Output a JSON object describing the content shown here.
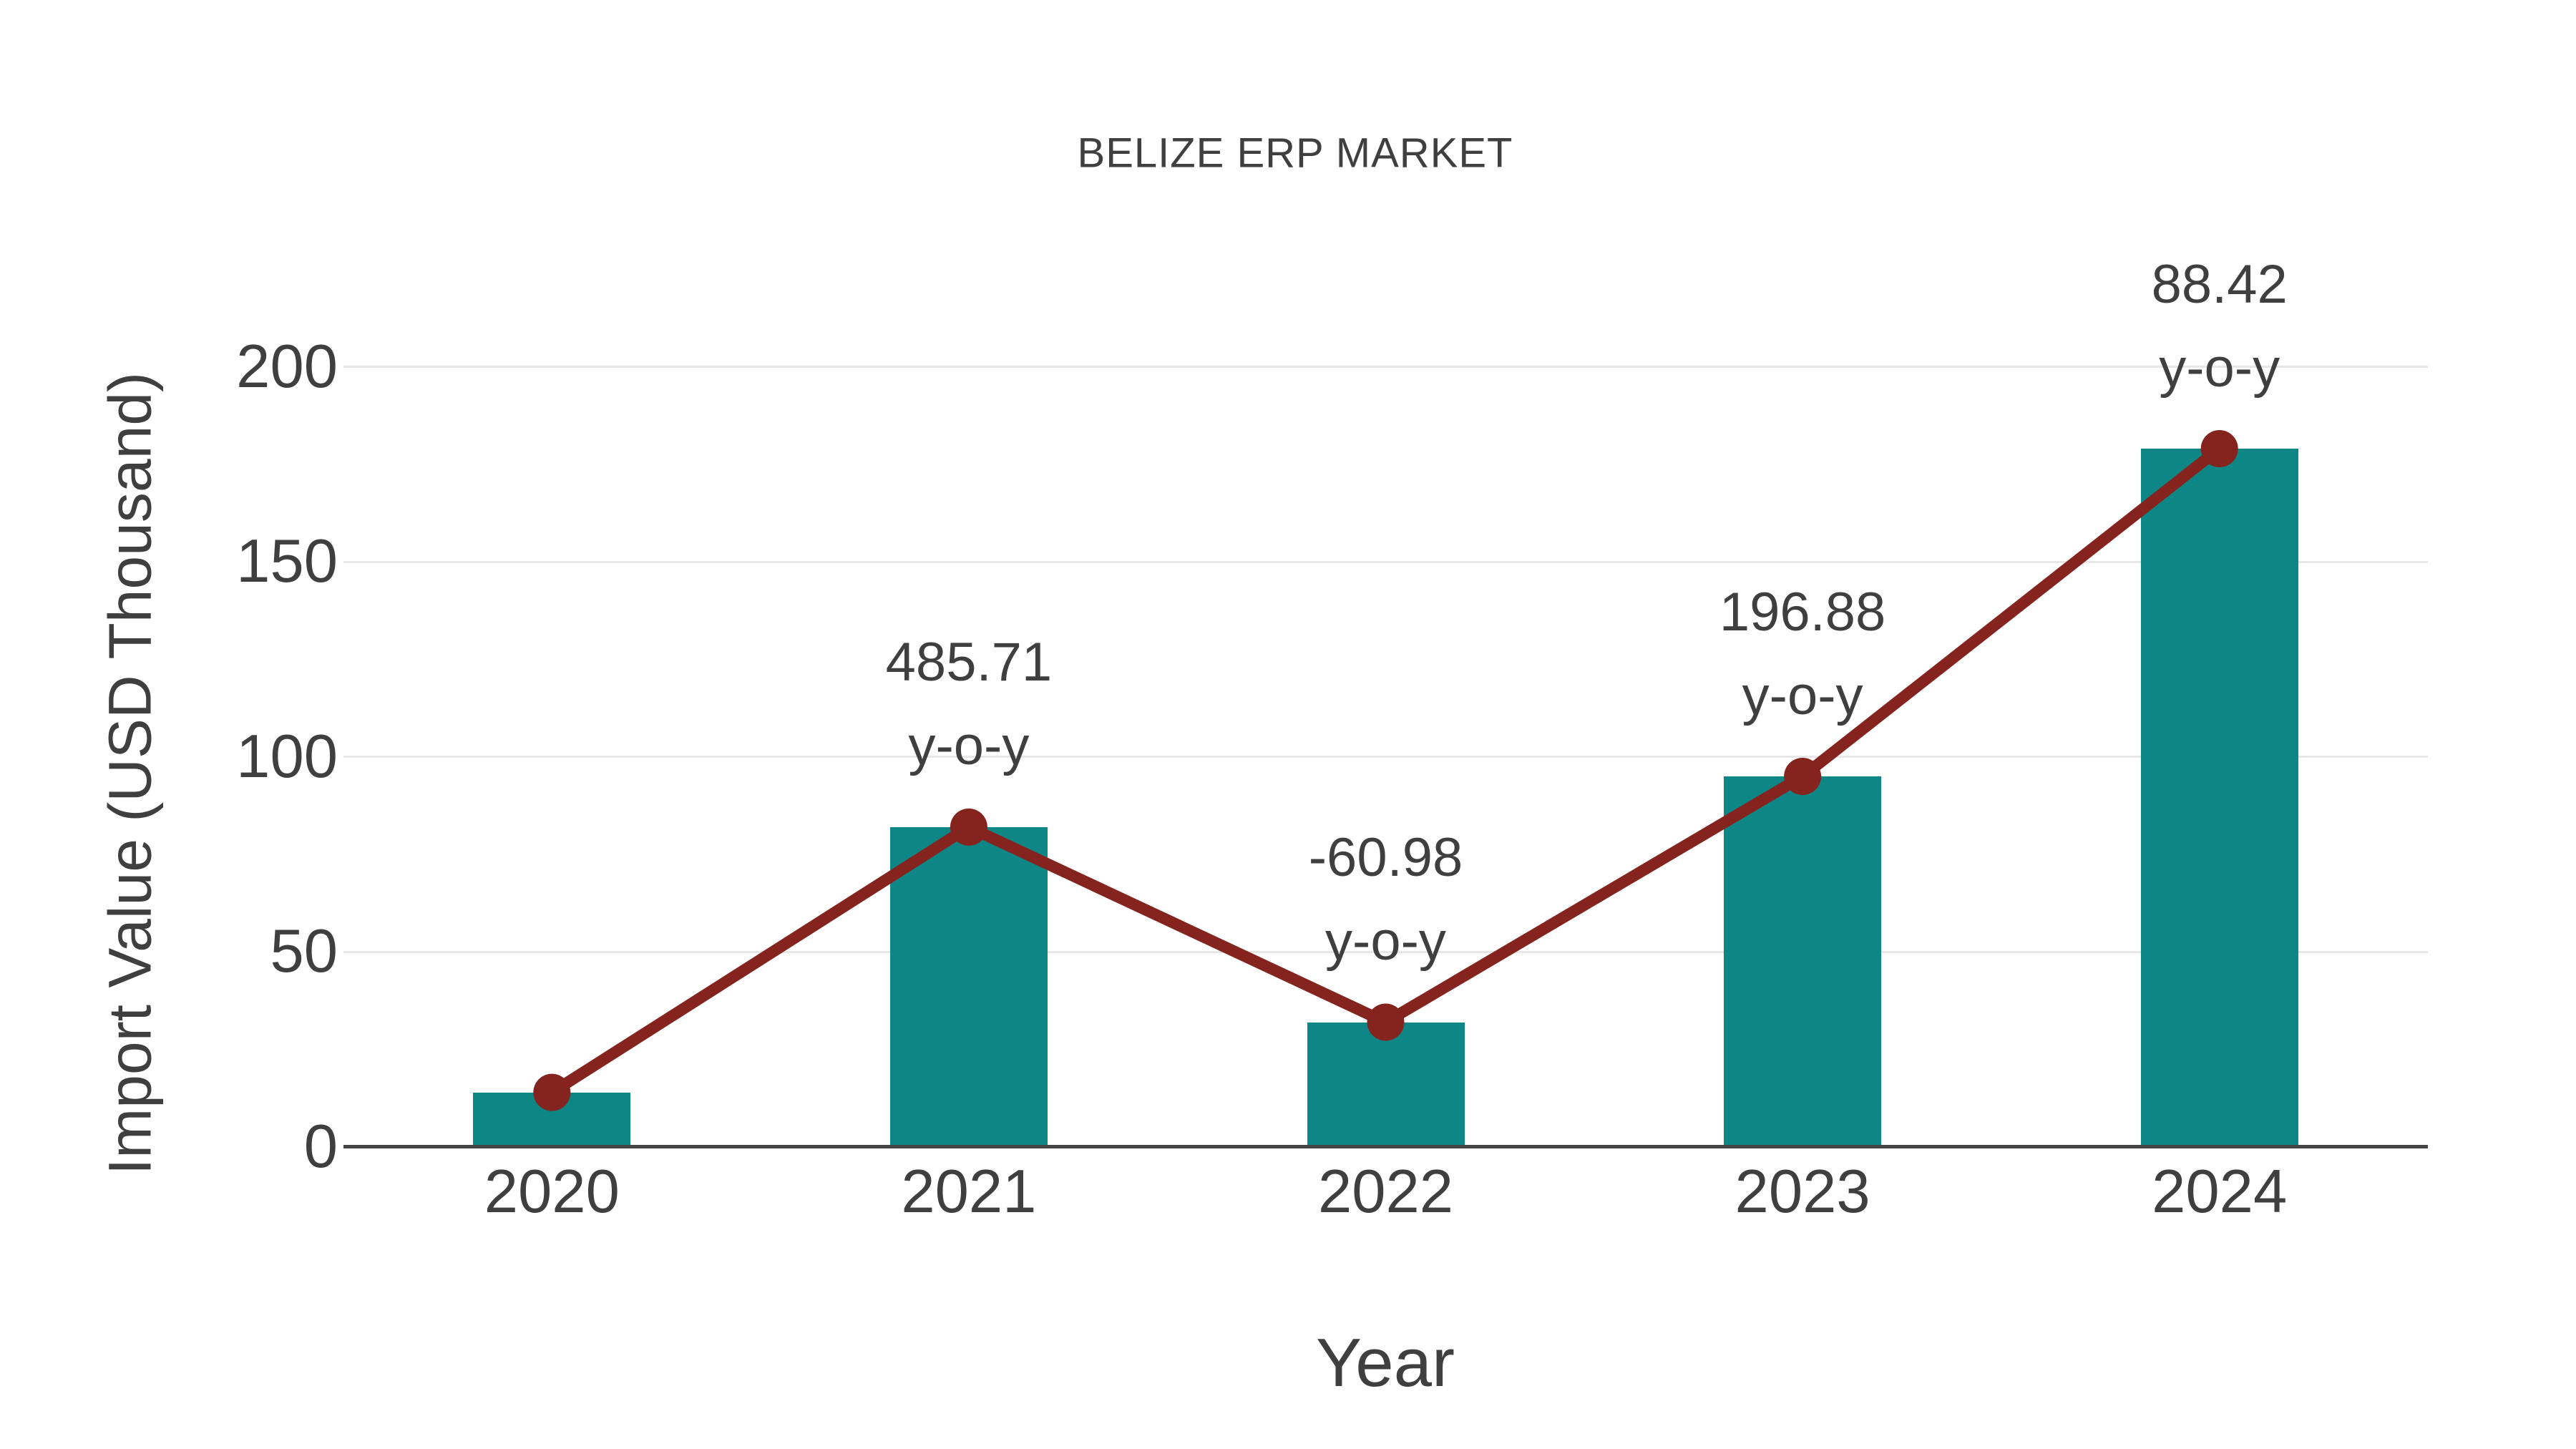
{
  "chart_data": {
    "type": "bar",
    "title": "BELIZE ERP MARKET",
    "xlabel": "Year",
    "ylabel": "Import Value (USD Thousand)",
    "categories": [
      "2020",
      "2021",
      "2022",
      "2023",
      "2024"
    ],
    "values": [
      14,
      82,
      32,
      95,
      179
    ],
    "line_overlay": {
      "name": "y-o-y trend line",
      "type": "line",
      "marker": "circle",
      "values": [
        14,
        82,
        32,
        95,
        179
      ]
    },
    "annotations": [
      {
        "category": "2021",
        "value_label": "485.71",
        "suffix_label": "y-o-y"
      },
      {
        "category": "2022",
        "value_label": "-60.98",
        "suffix_label": "y-o-y"
      },
      {
        "category": "2023",
        "value_label": "196.88",
        "suffix_label": "y-o-y"
      },
      {
        "category": "2024",
        "value_label": "88.42",
        "suffix_label": "y-o-y"
      }
    ],
    "yticks": [
      0,
      50,
      100,
      150,
      200
    ],
    "ylim": [
      0,
      200
    ],
    "grid": "horizontal-only",
    "legend": "none",
    "colors": {
      "bar": "#0e8686",
      "line": "#85231f",
      "marker": "#85231f",
      "text": "#3f3f3f",
      "grid": "#e7e7e7",
      "axis": "#454545",
      "background": "#ffffff"
    }
  }
}
